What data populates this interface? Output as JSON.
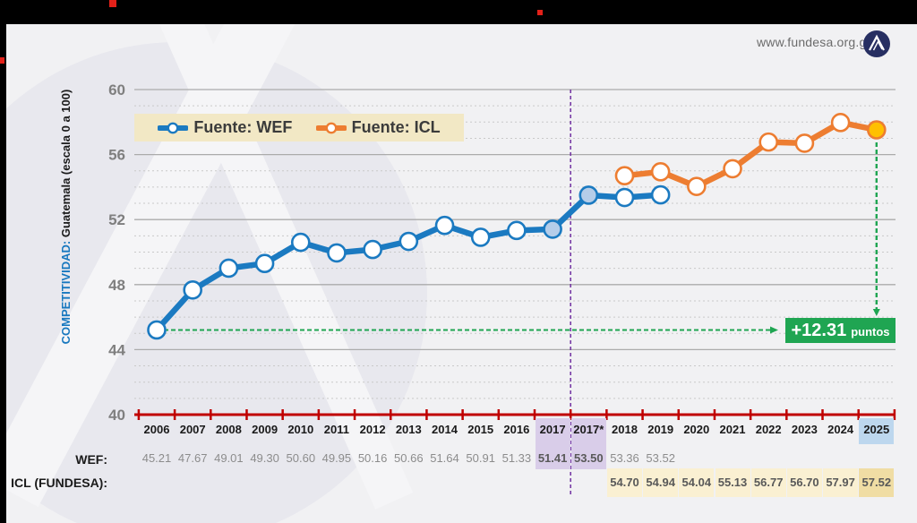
{
  "header": {
    "url": "www.fundesa.org.gt"
  },
  "ylabel": {
    "primary": "COMPETITIVIDAD:",
    "secondary": " Guatemala (escala 0 a 100)"
  },
  "chart_data": {
    "type": "line",
    "categories": [
      "2006",
      "2007",
      "2008",
      "2009",
      "2010",
      "2011",
      "2012",
      "2013",
      "2014",
      "2015",
      "2016",
      "2017",
      "2017*",
      "2018",
      "2019",
      "2020",
      "2021",
      "2022",
      "2023",
      "2024",
      "2025"
    ],
    "series": [
      {
        "name": "Fuente: WEF",
        "color": "#1b7ac1",
        "values": [
          45.21,
          47.67,
          49.01,
          49.3,
          50.6,
          49.95,
          50.16,
          50.66,
          51.64,
          50.91,
          51.33,
          51.41,
          53.5,
          53.36,
          53.52,
          null,
          null,
          null,
          null,
          null,
          null
        ]
      },
      {
        "name": "Fuente: ICL",
        "color": "#ed7d31",
        "values": [
          null,
          null,
          null,
          null,
          null,
          null,
          null,
          null,
          null,
          null,
          null,
          null,
          null,
          54.7,
          54.94,
          54.04,
          55.13,
          56.77,
          56.7,
          57.97,
          57.52
        ]
      }
    ],
    "ylim": [
      40,
      60
    ],
    "yticks": [
      40,
      44,
      48,
      52,
      56,
      60
    ],
    "grid": "major-solid-minor-dashed",
    "legend_position": "top-left-inside",
    "annotation": {
      "delta_value": "+12.31",
      "delta_unit": "puntos",
      "baseline_value": 45.21,
      "final_value": 57.52,
      "divider_after_category": "2017"
    },
    "highlights": {
      "wef_marker_years": [
        "2017",
        "2017*"
      ],
      "final_icl_year": "2025"
    }
  },
  "table": {
    "wef_label": "WEF:",
    "icl_label": "ICL (FUNDESA):",
    "wef_values": [
      "45.21",
      "47.67",
      "49.01",
      "49.30",
      "50.60",
      "49.95",
      "50.16",
      "50.66",
      "51.64",
      "50.91",
      "51.33",
      "51.41",
      "53.50",
      "53.36",
      "53.52",
      null,
      null,
      null,
      null,
      null,
      null
    ],
    "icl_values": [
      null,
      null,
      null,
      null,
      null,
      null,
      null,
      null,
      null,
      null,
      null,
      null,
      null,
      "54.70",
      "54.94",
      "54.04",
      "55.13",
      "56.77",
      "56.70",
      "57.97",
      "57.52"
    ]
  },
  "colors": {
    "wef": "#1b7ac1",
    "icl": "#ed7d31",
    "final_marker_fill": "#ffc000",
    "highlight_marker_fill": "#b5cde9",
    "axis_red": "#c00000",
    "delta_green": "#1fa552",
    "divider_purple": "#7030a0",
    "legend_bg": "#f2e8c5",
    "lavender_cell": "#d9cde9",
    "blue_cell": "#bdd7ee",
    "yellow_cell": "#faf0d2",
    "yellow_cell_final": "#f0dda4",
    "ytick_gray": "#7f7f7f"
  }
}
